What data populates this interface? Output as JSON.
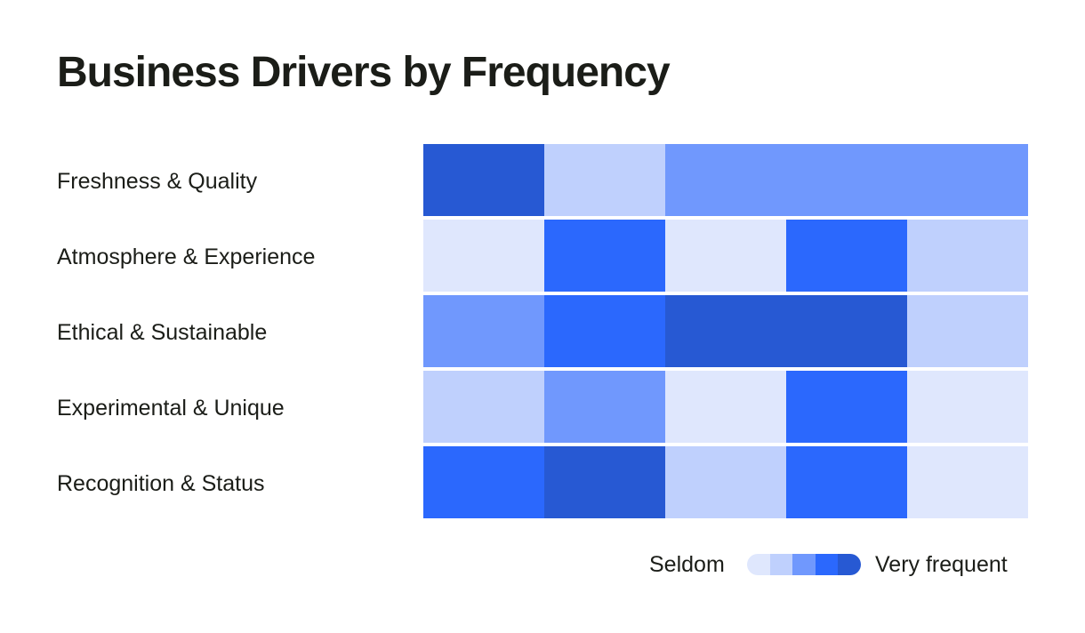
{
  "title": "Business Drivers by Frequency",
  "colors": {
    "levels": [
      "#dfe7fd",
      "#bfd0fd",
      "#7098fd",
      "#2b68fd",
      "#2759d3"
    ],
    "background": "#ffffff",
    "text": "#1b1d18"
  },
  "legend": {
    "low_label": "Seldom",
    "high_label": "Very frequent"
  },
  "chart_data": {
    "type": "heatmap",
    "title": "Business Drivers by Frequency",
    "rows": [
      "Freshness & Quality",
      "Atmosphere & Experience",
      "Ethical & Sustainable",
      "Experimental & Unique",
      "Recognition & Status"
    ],
    "column_count": 5,
    "values": [
      [
        5,
        2,
        3,
        3,
        3
      ],
      [
        1,
        4,
        1,
        4,
        2
      ],
      [
        3,
        4,
        5,
        5,
        2
      ],
      [
        2,
        3,
        1,
        4,
        1
      ],
      [
        4,
        5,
        2,
        4,
        1
      ]
    ],
    "scale": {
      "min": 1,
      "max": 5,
      "min_label": "Seldom",
      "max_label": "Very frequent"
    },
    "legend_position": "bottom-right"
  }
}
